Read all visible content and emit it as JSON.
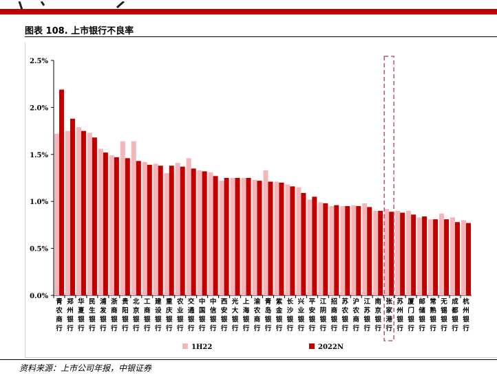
{
  "title": "图表 108. 上市银行不良率",
  "source": "资料来源：上市公司年报，中银证券",
  "colors": {
    "header_bar": "#c00000",
    "series_1h22": "#f4b6b8",
    "series_2022n": "#c00000",
    "highlight_box": "#c0506e"
  },
  "chart_data": {
    "type": "bar",
    "title": "",
    "xlabel": "",
    "ylabel": "",
    "ylim": [
      0,
      0.025
    ],
    "yticks": [
      "0.0%",
      "0.5%",
      "1.0%",
      "1.5%",
      "2.0%",
      "2.5%"
    ],
    "ytick_values": [
      0,
      0.005,
      0.01,
      0.015,
      0.02,
      0.025
    ],
    "grid": false,
    "legend": "bottom",
    "highlight_category": "张家港行",
    "categories": [
      "青农商行",
      "郑州银行",
      "华夏银行",
      "民生银行",
      "浦发银行",
      "浙商银行",
      "贵阳银行",
      "北京银行",
      "工商银行",
      "建设银行",
      "重庆银行",
      "农业银行",
      "交通银行",
      "中国银行",
      "中信银行",
      "西安银行",
      "光大银行",
      "上海银行",
      "渝农商行",
      "青岛银行",
      "紫金银行",
      "长沙银行",
      "兴业银行",
      "平安银行",
      "江阴银行",
      "招商银行",
      "苏农银行",
      "沪农商行",
      "江苏银行",
      "南京银行",
      "张家港行",
      "苏州银行",
      "厦门银行",
      "邮储银行",
      "常熟银行",
      "无锡银行",
      "成都银行",
      "杭州银行"
    ],
    "series": [
      {
        "name": "1H22",
        "values": [
          0.0172,
          0.0175,
          0.0179,
          0.0173,
          0.0156,
          0.0149,
          0.0164,
          0.0164,
          0.0142,
          0.014,
          0.013,
          0.0141,
          0.0146,
          0.0133,
          0.0131,
          0.0122,
          0.0125,
          0.0125,
          0.0123,
          0.0133,
          0.0121,
          0.0118,
          0.0115,
          0.0102,
          0.0099,
          0.0095,
          0.0095,
          0.0096,
          0.0098,
          0.009,
          0.0092,
          0.009,
          0.009,
          0.0083,
          0.0081,
          0.0087,
          0.0083,
          0.008
        ]
      },
      {
        "name": "2022N",
        "values": [
          0.0219,
          0.0188,
          0.0175,
          0.0168,
          0.0152,
          0.0147,
          0.0146,
          0.0143,
          0.0139,
          0.0138,
          0.0138,
          0.0137,
          0.0135,
          0.0132,
          0.0127,
          0.0125,
          0.0125,
          0.0125,
          0.0122,
          0.0121,
          0.012,
          0.0116,
          0.0109,
          0.0105,
          0.0098,
          0.0096,
          0.0095,
          0.0095,
          0.0094,
          0.009,
          0.0089,
          0.0088,
          0.0086,
          0.0084,
          0.0081,
          0.0081,
          0.0078,
          0.0077
        ]
      }
    ]
  }
}
